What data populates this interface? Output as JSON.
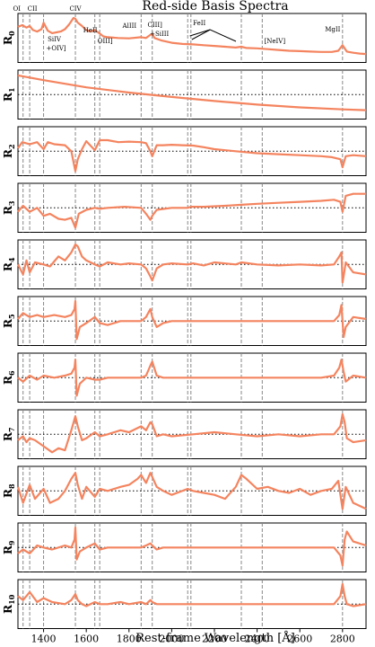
{
  "chart_data": {
    "type": "line",
    "title": "Red-side Basis Spectra",
    "xlabel": "Rest-frame Wavelength [Å]",
    "xlim": [
      1280,
      2910
    ],
    "xticks": [
      1400,
      1600,
      1800,
      2000,
      2200,
      2400,
      2600,
      2800
    ],
    "series_color": "#f4845f",
    "line_color_dashed": "#888888",
    "emission_lines": [
      1304,
      1335,
      1400,
      1549,
      1640,
      1663,
      1857,
      1909,
      2075,
      2090,
      2326,
      2424,
      2800
    ],
    "line_annotations": [
      {
        "text": "OI",
        "x": 1304
      },
      {
        "text": "CII",
        "x": 1335
      },
      {
        "text": "CIV",
        "x": 1549
      },
      {
        "text": "SiIV",
        "x": 1400
      },
      {
        "text": "+OIV]",
        "x": 1400
      },
      {
        "text": "HeII",
        "x": 1640
      },
      {
        "text": "OIII]",
        "x": 1663
      },
      {
        "text": "AlIII",
        "x": 1857
      },
      {
        "text": "CIII]",
        "x": 1909
      },
      {
        "text": "+SiIII",
        "x": 1909
      },
      {
        "text": "FeII",
        "x": 2180
      },
      {
        "text": "[NeIV]",
        "x": 2424
      },
      {
        "text": "MgII",
        "x": 2800
      }
    ],
    "panels": [
      {
        "label": "R",
        "sub": "0",
        "zero_line": false,
        "ylim": [
          0,
          1
        ],
        "x": [
          1280,
          1300,
          1320,
          1335,
          1350,
          1370,
          1390,
          1400,
          1420,
          1440,
          1460,
          1480,
          1500,
          1520,
          1540,
          1549,
          1560,
          1580,
          1600,
          1620,
          1640,
          1660,
          1680,
          1700,
          1750,
          1800,
          1857,
          1880,
          1900,
          1909,
          1920,
          1950,
          2000,
          2050,
          2100,
          2150,
          2200,
          2250,
          2300,
          2326,
          2350,
          2400,
          2450,
          2500,
          2550,
          2600,
          2650,
          2700,
          2750,
          2780,
          2800,
          2820,
          2850,
          2880,
          2910
        ],
        "y": [
          0.78,
          0.82,
          0.76,
          0.8,
          0.7,
          0.66,
          0.72,
          0.88,
          0.68,
          0.62,
          0.64,
          0.66,
          0.72,
          0.84,
          1.0,
          0.98,
          0.88,
          0.8,
          0.7,
          0.66,
          0.7,
          0.62,
          0.54,
          0.52,
          0.5,
          0.49,
          0.52,
          0.5,
          0.58,
          0.6,
          0.5,
          0.44,
          0.38,
          0.35,
          0.34,
          0.32,
          0.3,
          0.28,
          0.26,
          0.28,
          0.25,
          0.24,
          0.22,
          0.2,
          0.18,
          0.17,
          0.16,
          0.15,
          0.15,
          0.18,
          0.32,
          0.16,
          0.13,
          0.11,
          0.1
        ]
      },
      {
        "label": "R",
        "sub": "1",
        "zero_line": true,
        "ylim": [
          -1,
          1
        ],
        "x": [
          1280,
          1400,
          1600,
          1800,
          2000,
          2200,
          2400,
          2600,
          2800,
          2910
        ],
        "y": [
          0.96,
          0.72,
          0.36,
          0.1,
          -0.12,
          -0.32,
          -0.5,
          -0.64,
          -0.74,
          -0.78
        ]
      },
      {
        "label": "R",
        "sub": "2",
        "zero_line": true,
        "ylim": [
          -1,
          1
        ],
        "x": [
          1280,
          1300,
          1335,
          1370,
          1400,
          1420,
          1450,
          1500,
          1530,
          1549,
          1560,
          1580,
          1600,
          1640,
          1663,
          1700,
          1750,
          1800,
          1857,
          1880,
          1900,
          1909,
          1930,
          1960,
          2000,
          2050,
          2100,
          2150,
          2200,
          2300,
          2400,
          2500,
          2600,
          2700,
          2750,
          2790,
          2800,
          2815,
          2850,
          2910
        ],
        "y": [
          0.15,
          0.45,
          0.35,
          0.45,
          0.1,
          0.45,
          0.35,
          0.3,
          0.0,
          -1.0,
          -0.4,
          0.1,
          0.5,
          0.05,
          0.55,
          0.55,
          0.45,
          0.48,
          0.45,
          0.4,
          0.0,
          -0.25,
          0.3,
          0.3,
          0.32,
          0.3,
          0.28,
          0.2,
          0.1,
          0.0,
          -0.1,
          -0.15,
          -0.2,
          -0.25,
          -0.3,
          -0.4,
          -0.8,
          -0.25,
          -0.2,
          -0.25
        ]
      },
      {
        "label": "R",
        "sub": "3",
        "zero_line": true,
        "ylim": [
          -1,
          1
        ],
        "x": [
          1280,
          1304,
          1335,
          1370,
          1400,
          1430,
          1470,
          1500,
          1530,
          1549,
          1565,
          1600,
          1640,
          1663,
          1700,
          1780,
          1857,
          1880,
          1900,
          1909,
          1930,
          2000,
          2075,
          2090,
          2150,
          2250,
          2326,
          2400,
          2500,
          2600,
          2700,
          2760,
          2790,
          2800,
          2815,
          2850,
          2910
        ],
        "y": [
          -0.2,
          0.1,
          -0.2,
          0.0,
          -0.4,
          -0.3,
          -0.55,
          -0.6,
          -0.5,
          -1.0,
          -0.3,
          -0.1,
          0.0,
          -0.05,
          0.0,
          0.05,
          0.0,
          -0.3,
          -0.6,
          -0.4,
          -0.1,
          0.0,
          0.0,
          0.05,
          0.05,
          0.1,
          0.15,
          0.2,
          0.25,
          0.3,
          0.35,
          0.4,
          0.3,
          -0.2,
          0.6,
          0.7,
          0.7
        ]
      },
      {
        "label": "R",
        "sub": "4",
        "zero_line": true,
        "ylim": [
          -1,
          1
        ],
        "x": [
          1280,
          1304,
          1320,
          1335,
          1360,
          1400,
          1430,
          1470,
          1500,
          1530,
          1549,
          1560,
          1580,
          1600,
          1640,
          1663,
          1700,
          1760,
          1800,
          1857,
          1880,
          1900,
          1909,
          1930,
          1960,
          2000,
          2075,
          2100,
          2150,
          2200,
          2300,
          2326,
          2400,
          2500,
          2600,
          2700,
          2760,
          2785,
          2795,
          2800,
          2805,
          2815,
          2850,
          2910
        ],
        "y": [
          0.0,
          -0.5,
          0.2,
          -0.4,
          0.1,
          0.0,
          -0.1,
          0.4,
          0.2,
          0.6,
          1.0,
          0.9,
          0.4,
          0.2,
          0.0,
          -0.1,
          0.1,
          0.0,
          0.05,
          0.0,
          -0.2,
          -0.6,
          -0.8,
          -0.2,
          0.0,
          0.05,
          0.0,
          0.05,
          -0.05,
          0.1,
          0.0,
          0.1,
          0.0,
          -0.05,
          0.0,
          -0.05,
          0.0,
          0.4,
          0.6,
          -0.9,
          -0.6,
          0.1,
          -0.4,
          -0.5
        ]
      },
      {
        "label": "R",
        "sub": "5",
        "zero_line": true,
        "ylim": [
          -1,
          1
        ],
        "x": [
          1280,
          1304,
          1335,
          1370,
          1400,
          1450,
          1500,
          1530,
          1545,
          1549,
          1555,
          1570,
          1600,
          1640,
          1663,
          1700,
          1760,
          1800,
          1857,
          1880,
          1900,
          1909,
          1930,
          1960,
          2000,
          2100,
          2200,
          2300,
          2400,
          2500,
          2600,
          2700,
          2760,
          2785,
          2795,
          2805,
          2815,
          2850,
          2910
        ],
        "y": [
          0.1,
          0.4,
          0.2,
          0.3,
          0.2,
          0.3,
          0.2,
          0.3,
          0.6,
          1.0,
          -0.9,
          -0.3,
          -0.1,
          0.2,
          -0.1,
          -0.2,
          0.0,
          0.0,
          0.0,
          0.2,
          0.6,
          0.2,
          -0.3,
          -0.1,
          0.0,
          0.0,
          0.0,
          0.0,
          0.0,
          0.0,
          0.0,
          0.0,
          0.0,
          0.3,
          0.8,
          -0.8,
          -0.3,
          0.2,
          0.1
        ]
      },
      {
        "label": "R",
        "sub": "6",
        "zero_line": true,
        "ylim": [
          -1,
          1
        ],
        "x": [
          1280,
          1304,
          1335,
          1370,
          1400,
          1450,
          1500,
          1530,
          1545,
          1549,
          1555,
          1570,
          1600,
          1640,
          1663,
          1700,
          1760,
          1800,
          1857,
          1880,
          1900,
          1909,
          1930,
          1960,
          2000,
          2100,
          2200,
          2300,
          2400,
          2500,
          2600,
          2700,
          2760,
          2785,
          2795,
          2805,
          2815,
          2850,
          2910
        ],
        "y": [
          0.0,
          -0.2,
          0.1,
          -0.1,
          0.1,
          0.0,
          0.1,
          0.2,
          0.5,
          0.9,
          -0.9,
          -0.3,
          0.0,
          -0.1,
          -0.1,
          0.0,
          0.0,
          0.0,
          0.0,
          0.1,
          0.6,
          0.8,
          0.1,
          0.0,
          0.0,
          0.0,
          0.0,
          0.0,
          0.0,
          0.0,
          0.0,
          0.0,
          0.1,
          0.5,
          0.9,
          0.3,
          -0.2,
          0.1,
          0.0
        ]
      },
      {
        "label": "R",
        "sub": "7",
        "zero_line": true,
        "ylim": [
          -1,
          1
        ],
        "x": [
          1280,
          1304,
          1320,
          1335,
          1360,
          1400,
          1440,
          1470,
          1500,
          1530,
          1549,
          1560,
          1580,
          1600,
          1640,
          1663,
          1700,
          1760,
          1800,
          1857,
          1880,
          1900,
          1909,
          1930,
          1960,
          2000,
          2100,
          2200,
          2300,
          2400,
          2500,
          2600,
          2700,
          2760,
          2790,
          2800,
          2810,
          2820,
          2850,
          2910
        ],
        "y": [
          -0.3,
          -0.1,
          -0.4,
          -0.2,
          -0.3,
          -0.6,
          -0.9,
          -0.7,
          -0.8,
          0.2,
          0.9,
          0.4,
          -0.3,
          -0.2,
          0.1,
          -0.1,
          0.0,
          0.2,
          0.1,
          0.4,
          0.2,
          0.6,
          0.5,
          -0.1,
          0.0,
          -0.1,
          0.0,
          0.1,
          0.0,
          -0.1,
          0.0,
          -0.1,
          0.0,
          0.0,
          0.4,
          1.0,
          0.6,
          -0.2,
          -0.4,
          -0.3
        ]
      },
      {
        "label": "R",
        "sub": "8",
        "zero_line": true,
        "ylim": [
          -1,
          1
        ],
        "x": [
          1280,
          1304,
          1335,
          1360,
          1400,
          1430,
          1470,
          1500,
          1530,
          1549,
          1560,
          1580,
          1600,
          1640,
          1663,
          1700,
          1760,
          1800,
          1840,
          1857,
          1880,
          1900,
          1909,
          1930,
          1960,
          2000,
          2075,
          2100,
          2150,
          2200,
          2250,
          2300,
          2326,
          2350,
          2400,
          2450,
          2500,
          2550,
          2600,
          2650,
          2700,
          2750,
          2780,
          2800,
          2815,
          2850,
          2910
        ],
        "y": [
          0.2,
          -0.6,
          0.3,
          -0.4,
          0.1,
          -0.6,
          -0.4,
          0.0,
          0.6,
          0.9,
          0.3,
          -0.4,
          0.2,
          -0.3,
          0.1,
          0.0,
          0.2,
          0.3,
          0.6,
          0.8,
          0.4,
          0.9,
          0.7,
          0.2,
          0.0,
          -0.2,
          0.1,
          0.0,
          -0.1,
          -0.2,
          -0.4,
          0.2,
          0.8,
          0.6,
          0.1,
          0.2,
          0.0,
          -0.1,
          0.1,
          -0.2,
          0.0,
          0.1,
          0.5,
          -0.9,
          0.2,
          -0.6,
          -0.9
        ]
      },
      {
        "label": "R",
        "sub": "9",
        "zero_line": true,
        "ylim": [
          -1,
          1
        ],
        "x": [
          1280,
          1304,
          1335,
          1370,
          1400,
          1440,
          1500,
          1530,
          1545,
          1549,
          1555,
          1570,
          1600,
          1640,
          1663,
          1700,
          1760,
          1800,
          1857,
          1880,
          1900,
          1909,
          1930,
          1960,
          2000,
          2100,
          2200,
          2300,
          2400,
          2500,
          2600,
          2700,
          2760,
          2790,
          2800,
          2810,
          2820,
          2850,
          2910
        ],
        "y": [
          -0.3,
          -0.1,
          -0.3,
          0.1,
          0.0,
          -0.1,
          0.1,
          0.0,
          0.4,
          1.0,
          -0.6,
          -0.2,
          0.0,
          0.2,
          -0.1,
          0.0,
          0.0,
          0.0,
          0.0,
          0.1,
          0.2,
          0.1,
          -0.1,
          0.0,
          0.0,
          0.0,
          0.0,
          0.0,
          0.0,
          0.0,
          0.0,
          0.0,
          0.0,
          -0.4,
          -0.9,
          0.4,
          0.8,
          0.3,
          0.1
        ]
      },
      {
        "label": "R",
        "sub": "10",
        "zero_line": true,
        "ylim": [
          -1,
          1
        ],
        "x": [
          1280,
          1304,
          1335,
          1370,
          1400,
          1440,
          1500,
          1530,
          1549,
          1560,
          1580,
          1600,
          1640,
          1663,
          1700,
          1760,
          1800,
          1857,
          1880,
          1900,
          1909,
          1930,
          1960,
          2000,
          2100,
          2200,
          2300,
          2400,
          2500,
          2600,
          2700,
          2760,
          2790,
          2800,
          2810,
          2820,
          2850,
          2910
        ],
        "y": [
          0.4,
          0.2,
          0.6,
          0.1,
          0.3,
          0.1,
          0.0,
          0.2,
          0.5,
          0.2,
          0.0,
          -0.1,
          0.1,
          0.0,
          0.0,
          0.1,
          0.0,
          0.1,
          0.0,
          0.2,
          0.1,
          0.0,
          0.0,
          0.0,
          0.0,
          0.0,
          0.0,
          0.0,
          0.0,
          0.0,
          0.0,
          0.0,
          0.4,
          1.0,
          0.4,
          0.0,
          -0.1,
          0.0
        ]
      }
    ]
  }
}
